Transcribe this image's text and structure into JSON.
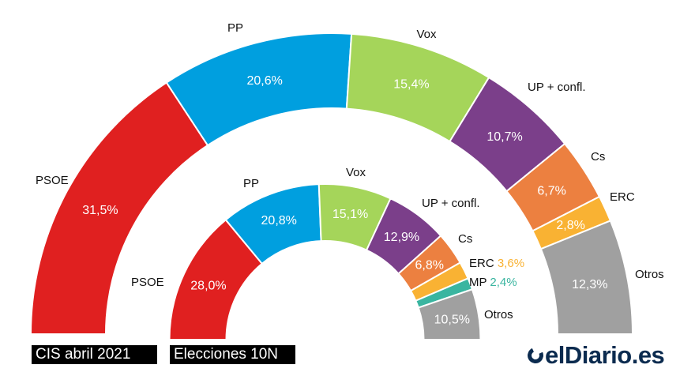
{
  "chart_data": [
    {
      "type": "pie",
      "subtype": "semicircle-donut",
      "title": "CIS abril 2021",
      "categories": [
        "PSOE",
        "PP",
        "Vox",
        "UP + confl.",
        "Cs",
        "ERC",
        "Otros"
      ],
      "values": [
        31.5,
        20.6,
        15.4,
        10.7,
        6.7,
        2.8,
        12.3
      ],
      "labels": [
        "31,5%",
        "20,6%",
        "15,4%",
        "10,7%",
        "6,7%",
        "2,8%",
        "12,3%"
      ],
      "colors": [
        "#e02020",
        "#009fdf",
        "#a5d55a",
        "#7b3f8a",
        "#ec8040",
        "#f9b233",
        "#a0a0a0"
      ]
    },
    {
      "type": "pie",
      "subtype": "semicircle-donut",
      "title": "Elecciones 10N",
      "categories": [
        "PSOE",
        "PP",
        "Vox",
        "UP + confl.",
        "Cs",
        "ERC",
        "MP",
        "Otros"
      ],
      "values": [
        28.0,
        20.8,
        15.1,
        12.9,
        6.8,
        3.6,
        2.4,
        10.5
      ],
      "labels": [
        "28,0%",
        "20,8%",
        "15,1%",
        "12,9%",
        "6,8%",
        "3,6%",
        "2,4%",
        "10,5%"
      ],
      "colors": [
        "#e02020",
        "#009fdf",
        "#a5d55a",
        "#7b3f8a",
        "#ec8040",
        "#f9b233",
        "#3ab5a0",
        "#a0a0a0"
      ]
    }
  ],
  "legend": {
    "outer": "CIS abril 2021",
    "inner": "Elecciones 10N"
  },
  "brand": {
    "name": "elDiario.es",
    "color": "#0b2b4f"
  }
}
